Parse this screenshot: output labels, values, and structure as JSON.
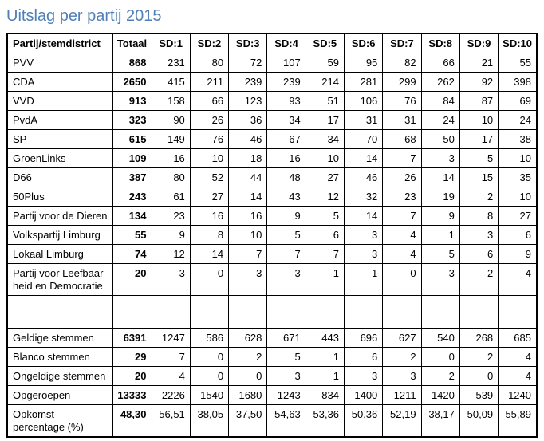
{
  "title": "Uitslag per partij 2015",
  "colors": {
    "title": "#5080b7",
    "border": "#000000",
    "background": "#ffffff",
    "text": "#000000"
  },
  "table": {
    "header": [
      "Partij/stemdistrict",
      "Totaal",
      "SD:1",
      "SD:2",
      "SD:3",
      "SD:4",
      "SD:5",
      "SD:6",
      "SD:7",
      "SD:8",
      "SD:9",
      "SD:10"
    ],
    "party_rows": [
      {
        "label": "PVV",
        "values": [
          868,
          231,
          80,
          72,
          107,
          59,
          95,
          82,
          66,
          21,
          55
        ]
      },
      {
        "label": "CDA",
        "values": [
          2650,
          415,
          211,
          239,
          239,
          214,
          281,
          299,
          262,
          92,
          398
        ]
      },
      {
        "label": "VVD",
        "values": [
          913,
          158,
          66,
          123,
          93,
          51,
          106,
          76,
          84,
          87,
          69
        ]
      },
      {
        "label": "PvdA",
        "values": [
          323,
          90,
          26,
          36,
          34,
          17,
          31,
          31,
          24,
          10,
          24
        ]
      },
      {
        "label": "SP",
        "values": [
          615,
          149,
          76,
          46,
          67,
          34,
          70,
          68,
          50,
          17,
          38
        ]
      },
      {
        "label": "GroenLinks",
        "values": [
          109,
          16,
          10,
          18,
          16,
          10,
          14,
          7,
          3,
          5,
          10
        ]
      },
      {
        "label": "D66",
        "values": [
          387,
          80,
          52,
          44,
          48,
          27,
          46,
          26,
          14,
          15,
          35
        ]
      },
      {
        "label": "50Plus",
        "values": [
          243,
          61,
          27,
          14,
          43,
          12,
          32,
          23,
          19,
          2,
          10
        ]
      },
      {
        "label": "Partij voor de Dieren",
        "values": [
          134,
          23,
          16,
          16,
          9,
          5,
          14,
          7,
          9,
          8,
          27
        ]
      },
      {
        "label": "Volkspartij Limburg",
        "values": [
          55,
          9,
          8,
          10,
          5,
          6,
          3,
          4,
          1,
          3,
          6
        ]
      },
      {
        "label": "Lokaal Limburg",
        "values": [
          74,
          12,
          14,
          7,
          7,
          7,
          3,
          4,
          5,
          6,
          9
        ]
      },
      {
        "label": "Partij voor Leefbaar-\nheid en Democratie",
        "values": [
          20,
          3,
          0,
          3,
          3,
          1,
          1,
          0,
          3,
          2,
          4
        ]
      }
    ],
    "spacer_row": {
      "spacer": true,
      "label": "",
      "values": [
        "",
        "",
        "",
        "",
        "",
        "",
        "",
        "",
        "",
        "",
        ""
      ]
    },
    "summary_rows": [
      {
        "label": "Geldige stemmen",
        "values": [
          6391,
          1247,
          586,
          628,
          671,
          443,
          696,
          627,
          540,
          268,
          685
        ]
      },
      {
        "label": "Blanco stemmen",
        "values": [
          29,
          7,
          0,
          2,
          5,
          1,
          6,
          2,
          0,
          2,
          4
        ]
      },
      {
        "label": "Ongeldige stemmen",
        "values": [
          20,
          4,
          0,
          0,
          3,
          1,
          3,
          3,
          2,
          0,
          4
        ]
      },
      {
        "label": "Opgeroepen",
        "values": [
          13333,
          2226,
          1540,
          1680,
          1243,
          834,
          1400,
          1211,
          1420,
          539,
          1240
        ]
      },
      {
        "label": "Opkomst-\npercentage (%)",
        "values": [
          "48,30",
          "56,51",
          "38,05",
          "37,50",
          "54,63",
          "53,36",
          "50,36",
          "52,19",
          "38,17",
          "50,09",
          "55,89"
        ]
      }
    ]
  }
}
